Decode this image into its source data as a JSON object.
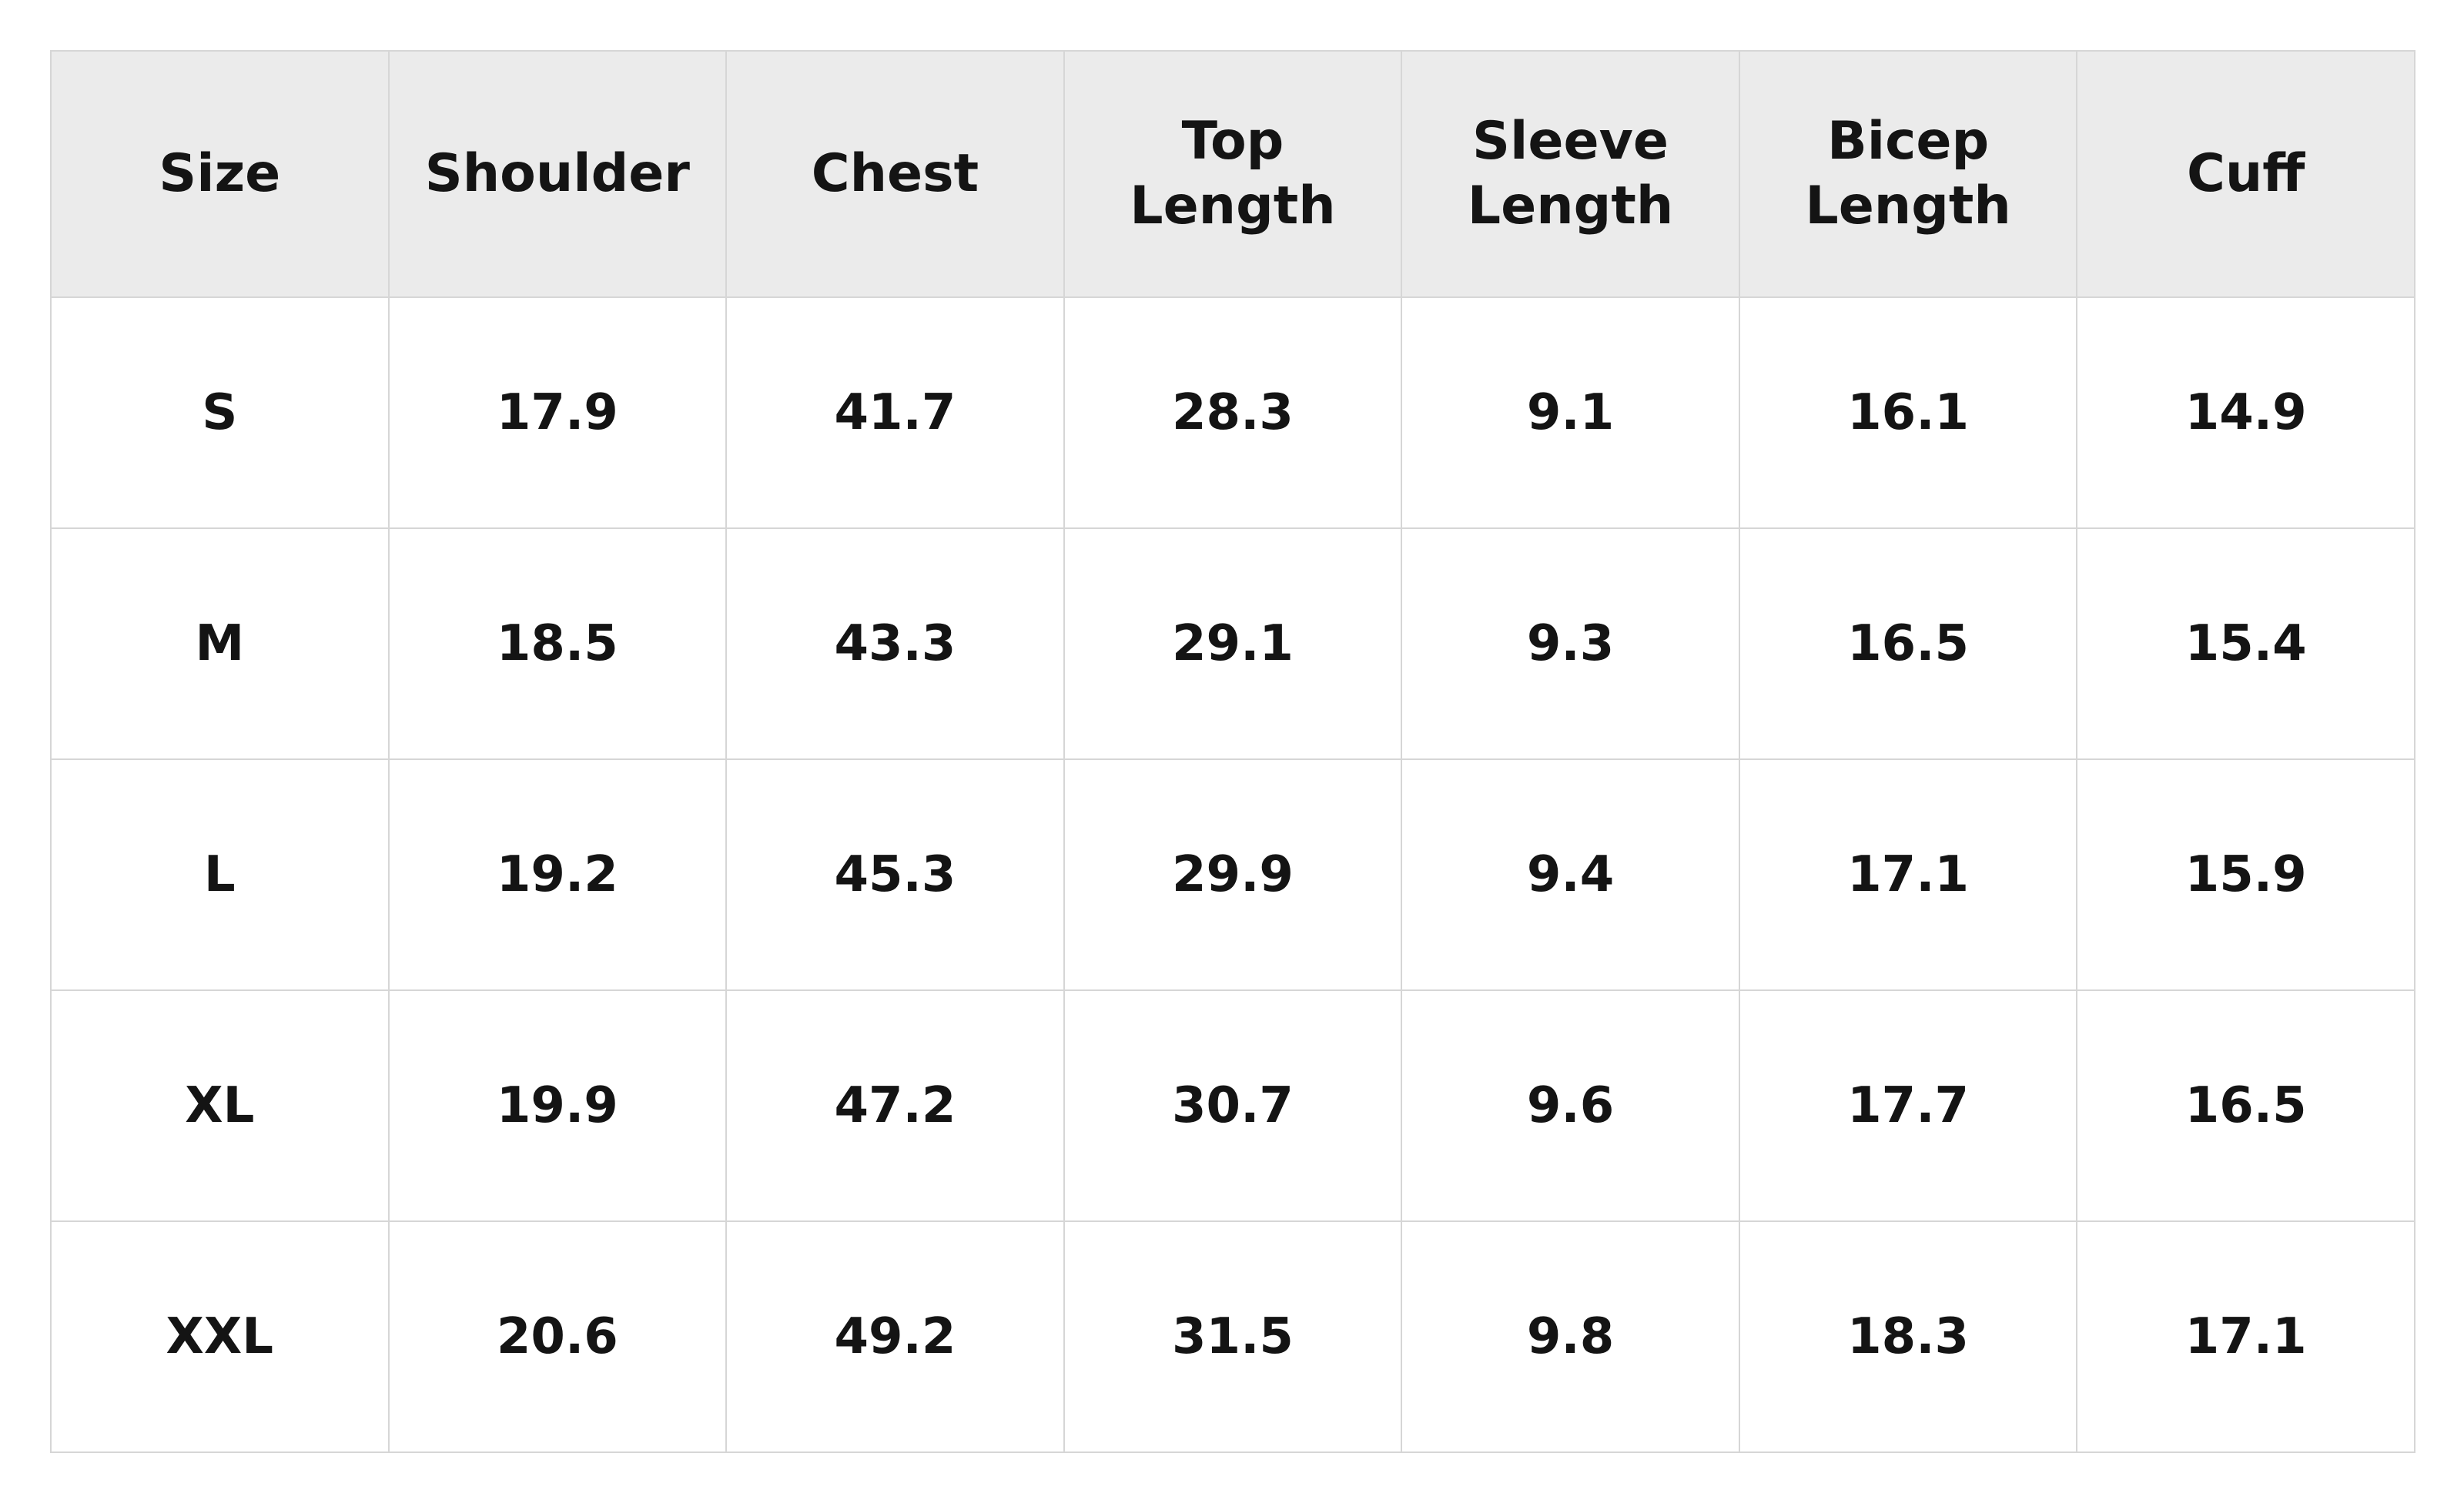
{
  "table": {
    "header": [
      "Size",
      "Shoulder",
      "Chest",
      "Top\nLength",
      "Sleeve\nLength",
      "Bicep\nLength",
      "Cuff"
    ],
    "rows": [
      [
        "S",
        17.9,
        41.7,
        28.3,
        9.1,
        16.1,
        14.9
      ],
      [
        "M",
        18.5,
        43.3,
        29.1,
        9.3,
        16.5,
        15.4
      ],
      [
        "L",
        19.2,
        45.3,
        29.9,
        9.4,
        17.1,
        15.9
      ],
      [
        "XL",
        19.9,
        47.2,
        30.7,
        9.6,
        17.7,
        16.5
      ],
      [
        "XXL",
        20.6,
        49.2,
        31.5,
        9.8,
        18.3,
        17.1
      ]
    ]
  }
}
